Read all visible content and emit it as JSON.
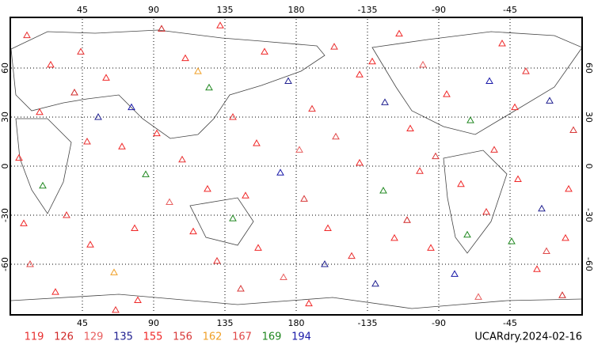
{
  "chart_data": {
    "type": "scatter",
    "title": "UCARdry.2024-02-16",
    "xlim": [
      0,
      360
    ],
    "ylim": [
      -90,
      90
    ],
    "xticks": [
      45,
      90,
      135,
      180,
      {
        "value": 225,
        "label": "-135"
      },
      {
        "value": 270,
        "label": "-90"
      },
      {
        "value": 315,
        "label": "-45"
      }
    ],
    "yticks": [
      60,
      30,
      0,
      -30,
      -60
    ],
    "grid": true,
    "groups": [
      {
        "name": "119",
        "color": "#e83030"
      },
      {
        "name": "126",
        "color": "#d02828"
      },
      {
        "name": "129",
        "color": "#e86060"
      },
      {
        "name": "135",
        "color": "#202090"
      },
      {
        "name": "155",
        "color": "#f02828"
      },
      {
        "name": "156",
        "color": "#d83838"
      },
      {
        "name": "162",
        "color": "#f0a028"
      },
      {
        "name": "167",
        "color": "#e04848"
      },
      {
        "name": "169",
        "color": "#208820"
      },
      {
        "name": "194",
        "color": "#1818a8"
      }
    ],
    "points": [
      [
        10,
        80,
        0
      ],
      [
        25,
        62,
        4
      ],
      [
        40,
        45,
        1
      ],
      [
        55,
        30,
        3
      ],
      [
        70,
        12,
        4
      ],
      [
        85,
        -5,
        8
      ],
      [
        100,
        -22,
        2
      ],
      [
        115,
        -40,
        4
      ],
      [
        130,
        -58,
        0
      ],
      [
        145,
        -75,
        5
      ],
      [
        160,
        70,
        4
      ],
      [
        175,
        52,
        3
      ],
      [
        190,
        35,
        0
      ],
      [
        205,
        18,
        7
      ],
      [
        220,
        2,
        4
      ],
      [
        235,
        -15,
        8
      ],
      [
        250,
        -33,
        1
      ],
      [
        265,
        -50,
        4
      ],
      [
        280,
        -66,
        9
      ],
      [
        295,
        -80,
        2
      ],
      [
        310,
        75,
        4
      ],
      [
        325,
        58,
        0
      ],
      [
        340,
        40,
        3
      ],
      [
        355,
        22,
        5
      ],
      [
        5,
        5,
        4
      ],
      [
        20,
        -12,
        8
      ],
      [
        35,
        -30,
        0
      ],
      [
        50,
        -48,
        4
      ],
      [
        65,
        -65,
        6
      ],
      [
        80,
        -82,
        4
      ],
      [
        95,
        84,
        1
      ],
      [
        110,
        66,
        4
      ],
      [
        125,
        48,
        8
      ],
      [
        140,
        30,
        0
      ],
      [
        155,
        14,
        4
      ],
      [
        170,
        -4,
        9
      ],
      [
        185,
        -20,
        5
      ],
      [
        200,
        -38,
        4
      ],
      [
        215,
        -55,
        0
      ],
      [
        230,
        -72,
        3
      ],
      [
        245,
        81,
        4
      ],
      [
        260,
        62,
        2
      ],
      [
        275,
        44,
        4
      ],
      [
        290,
        28,
        8
      ],
      [
        305,
        10,
        0
      ],
      [
        320,
        -8,
        4
      ],
      [
        335,
        -26,
        3
      ],
      [
        350,
        -44,
        4
      ],
      [
        12,
        -60,
        7
      ],
      [
        28,
        -77,
        4
      ],
      [
        44,
        70,
        0
      ],
      [
        60,
        54,
        4
      ],
      [
        76,
        36,
        9
      ],
      [
        92,
        20,
        4
      ],
      [
        108,
        4,
        0
      ],
      [
        124,
        -14,
        4
      ],
      [
        140,
        -32,
        8
      ],
      [
        156,
        -50,
        4
      ],
      [
        172,
        -68,
        2
      ],
      [
        188,
        -84,
        4
      ],
      [
        204,
        73,
        0
      ],
      [
        220,
        56,
        4
      ],
      [
        236,
        39,
        3
      ],
      [
        252,
        23,
        4
      ],
      [
        268,
        6,
        5
      ],
      [
        284,
        -11,
        4
      ],
      [
        300,
        -28,
        0
      ],
      [
        316,
        -46,
        8
      ],
      [
        332,
        -63,
        4
      ],
      [
        348,
        -79,
        1
      ],
      [
        18,
        33,
        4
      ],
      [
        48,
        15,
        0
      ],
      [
        78,
        -38,
        4
      ],
      [
        118,
        58,
        6
      ],
      [
        148,
        -18,
        4
      ],
      [
        198,
        -60,
        3
      ],
      [
        228,
        64,
        4
      ],
      [
        258,
        -3,
        0
      ],
      [
        288,
        -42,
        8
      ],
      [
        318,
        36,
        4
      ],
      [
        338,
        -52,
        7
      ],
      [
        8,
        -35,
        4
      ],
      [
        66,
        -88,
        0
      ],
      [
        132,
        86,
        4
      ],
      [
        182,
        10,
        2
      ],
      [
        242,
        -44,
        4
      ],
      [
        302,
        52,
        9
      ],
      [
        352,
        -14,
        4
      ]
    ]
  }
}
